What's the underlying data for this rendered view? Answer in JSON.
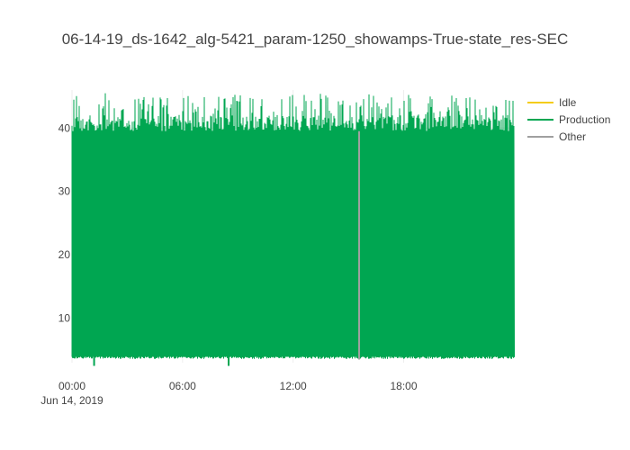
{
  "chart_data": {
    "type": "line",
    "title": "06-14-19_ds-1642_alg-5421_param-1250_showamps-True-state_res-SEC",
    "xlabel": "",
    "ylabel": "",
    "x_range": [
      "2019-06-14 00:00",
      "2019-06-14 23:59"
    ],
    "ylim": [
      3,
      46
    ],
    "x_ticks": [
      {
        "value": "2019-06-14 00:00",
        "label": "00:00",
        "sublabel": "Jun 14, 2019"
      },
      {
        "value": "2019-06-14 06:00",
        "label": "06:00",
        "sublabel": ""
      },
      {
        "value": "2019-06-14 12:00",
        "label": "12:00",
        "sublabel": ""
      },
      {
        "value": "2019-06-14 18:00",
        "label": "18:00",
        "sublabel": ""
      }
    ],
    "y_ticks": [
      10,
      20,
      30,
      40
    ],
    "grid": true,
    "legend_position": "top-right",
    "series": [
      {
        "name": "Idle",
        "color": "#f4cc19",
        "values": []
      },
      {
        "name": "Production",
        "color": "#00a651",
        "x_start": "2019-06-14 00:00",
        "x_end": "2019-06-14 23:59",
        "band_low": 4,
        "band_typical_high": 42,
        "band_max": 45.5,
        "notable_dips": [
          {
            "x": "2019-06-14 01:12",
            "y": 2.5
          },
          {
            "x": "2019-06-14 08:30",
            "y": 2.5
          }
        ]
      },
      {
        "name": "Other",
        "color": "#a0a0a0",
        "values": [
          {
            "x": "2019-06-14 15:35",
            "y_low": 3.5,
            "y_high": 39.5
          }
        ]
      }
    ]
  }
}
